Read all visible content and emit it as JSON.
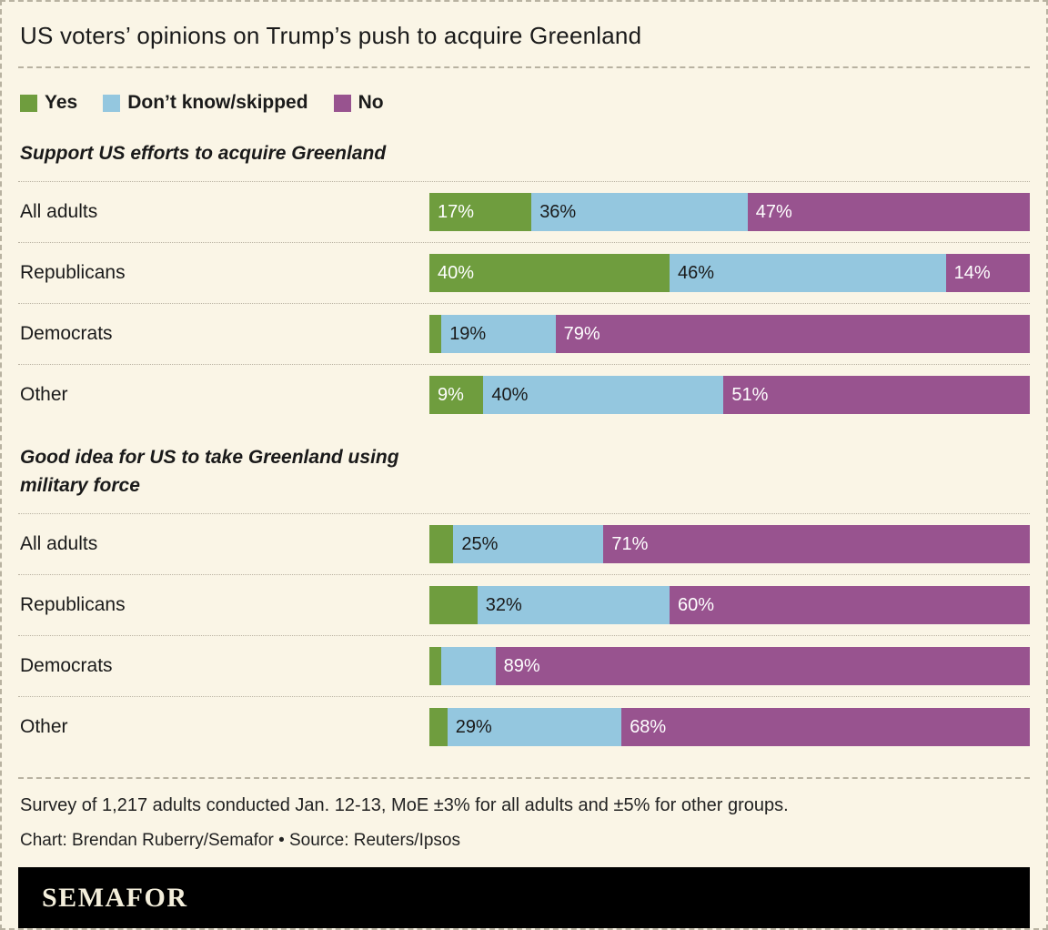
{
  "title": "US voters’ opinions on Trump’s push to acquire Greenland",
  "legend": [
    {
      "label": "Yes",
      "color": "#6f9d3e",
      "value_label_color": "#ffffff"
    },
    {
      "label": "Don’t know/skipped",
      "color": "#94c7df",
      "value_label_color": "#1a1a1a"
    },
    {
      "label": "No",
      "color": "#98538f",
      "value_label_color": "#ffffff"
    }
  ],
  "chart_data": {
    "type": "bar",
    "orientation": "horizontal",
    "stacked": true,
    "unit": "%",
    "x_range": [
      0,
      100
    ],
    "series_names": [
      "Yes",
      "Don't know/skipped",
      "No"
    ],
    "sections": [
      {
        "heading": "Support US efforts to acquire Greenland",
        "rows": [
          {
            "label": "All adults",
            "values": [
              17,
              36,
              47
            ],
            "value_labels": [
              "17%",
              "36%",
              "47%"
            ]
          },
          {
            "label": "Republicans",
            "values": [
              40,
              46,
              14
            ],
            "value_labels": [
              "40%",
              "46%",
              "14%"
            ]
          },
          {
            "label": "Democrats",
            "values": [
              2,
              19,
              79
            ],
            "value_labels": [
              "",
              "19%",
              "79%"
            ]
          },
          {
            "label": "Other",
            "values": [
              9,
              40,
              51
            ],
            "value_labels": [
              "9%",
              "40%",
              "51%"
            ]
          }
        ]
      },
      {
        "heading": "Good idea for US to take Greenland using military force",
        "rows": [
          {
            "label": "All adults",
            "values": [
              4,
              25,
              71
            ],
            "value_labels": [
              "",
              "25%",
              "71%"
            ]
          },
          {
            "label": "Republicans",
            "values": [
              8,
              32,
              60
            ],
            "value_labels": [
              "",
              "32%",
              "60%"
            ]
          },
          {
            "label": "Democrats",
            "values": [
              2,
              9,
              89
            ],
            "value_labels": [
              "",
              "",
              "89%"
            ]
          },
          {
            "label": "Other",
            "values": [
              3,
              29,
              68
            ],
            "value_labels": [
              "",
              "29%",
              "68%"
            ]
          }
        ]
      }
    ]
  },
  "footer": {
    "note": "Survey of 1,217 adults conducted Jan. 12-13, MoE ±3% for all adults and ±5% for other groups.",
    "credit": "Chart: Brendan Ruberry/Semafor • Source: Reuters/Ipsos",
    "logo_text": "SEMAFOR"
  }
}
